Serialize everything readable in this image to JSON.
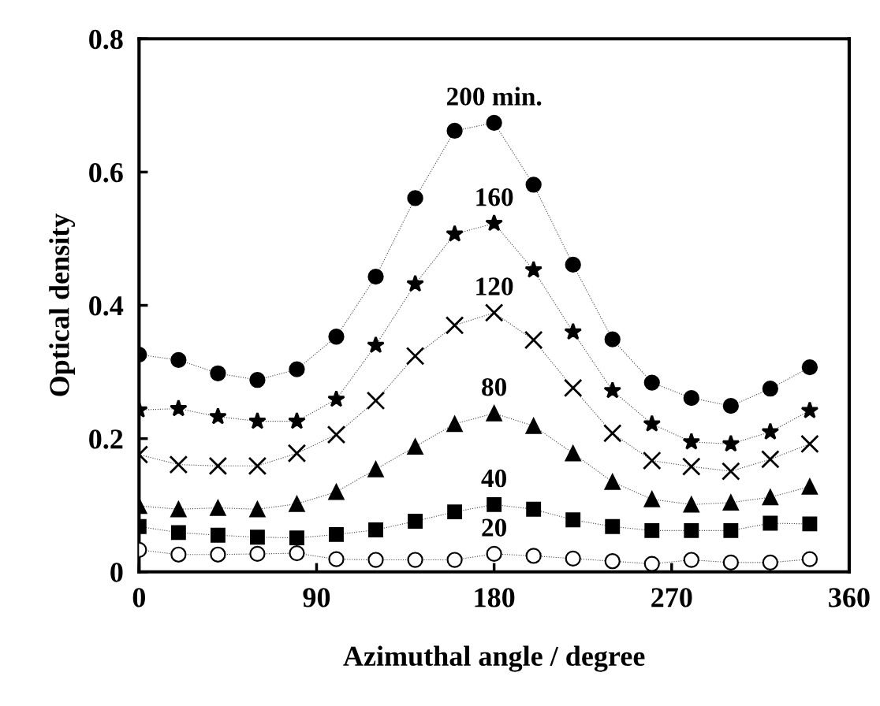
{
  "chart_data": {
    "type": "line",
    "xlabel": "Azimuthal angle / degree",
    "ylabel": "Optical density",
    "x": [
      0,
      20,
      40,
      60,
      80,
      100,
      120,
      140,
      160,
      180,
      200,
      220,
      240,
      260,
      280,
      300,
      320,
      340
    ],
    "xlim": [
      0,
      360
    ],
    "xticks": [
      0,
      90,
      180,
      270,
      360
    ],
    "ylim": [
      0,
      0.8
    ],
    "yticks": [
      0,
      0.2,
      0.4,
      0.6,
      0.8
    ],
    "grid": false,
    "legend": false,
    "line_style": "dotted",
    "series": [
      {
        "name": "200 min.",
        "color": "#000000",
        "marker": "circle",
        "values": [
          0.326,
          0.318,
          0.298,
          0.288,
          0.304,
          0.353,
          0.443,
          0.561,
          0.662,
          0.674,
          0.581,
          0.461,
          0.349,
          0.284,
          0.261,
          0.249,
          0.275,
          0.307
        ]
      },
      {
        "name": "160",
        "color": "#000000",
        "marker": "star",
        "values": [
          0.243,
          0.245,
          0.233,
          0.226,
          0.226,
          0.259,
          0.34,
          0.432,
          0.507,
          0.523,
          0.453,
          0.36,
          0.272,
          0.222,
          0.195,
          0.192,
          0.21,
          0.242
        ]
      },
      {
        "name": "120",
        "color": "#000000",
        "marker": "cross",
        "values": [
          0.176,
          0.161,
          0.159,
          0.159,
          0.178,
          0.206,
          0.257,
          0.324,
          0.37,
          0.389,
          0.348,
          0.276,
          0.208,
          0.167,
          0.158,
          0.151,
          0.169,
          0.192
        ]
      },
      {
        "name": "80",
        "color": "#000000",
        "marker": "triangle",
        "values": [
          0.099,
          0.094,
          0.096,
          0.094,
          0.102,
          0.12,
          0.154,
          0.188,
          0.222,
          0.238,
          0.219,
          0.178,
          0.135,
          0.109,
          0.101,
          0.104,
          0.112,
          0.128
        ]
      },
      {
        "name": "40",
        "color": "#000000",
        "marker": "square",
        "values": [
          0.068,
          0.059,
          0.055,
          0.052,
          0.051,
          0.056,
          0.063,
          0.076,
          0.09,
          0.101,
          0.094,
          0.078,
          0.068,
          0.062,
          0.062,
          0.062,
          0.073,
          0.072
        ]
      },
      {
        "name": "20",
        "color": "#ffffff",
        "marker": "circle",
        "values": [
          0.033,
          0.026,
          0.026,
          0.027,
          0.028,
          0.019,
          0.018,
          0.018,
          0.018,
          0.027,
          0.024,
          0.02,
          0.016,
          0.012,
          0.018,
          0.014,
          0.014,
          0.019
        ]
      }
    ]
  }
}
